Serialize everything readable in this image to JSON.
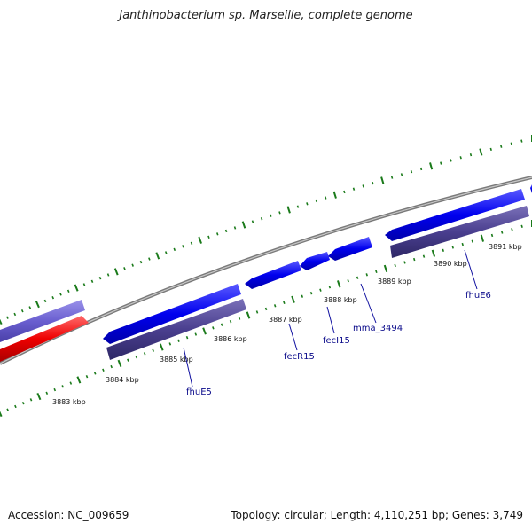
{
  "title": "Janthinobacterium sp. Marseille, complete genome",
  "footer": {
    "accession": "Accession: NC_009659",
    "summary": "Topology: circular; Length: 4,110,251 bp; Genes: 3,749"
  },
  "colors": {
    "backbone": "#888888",
    "tick": "#1a7a1a",
    "forward_gene": "#0000ee",
    "reverse_gene": "#4a3f8f",
    "rna_gene": "#ee0000",
    "light_gene": "#6a5fd0",
    "label": "#0a0a8a"
  },
  "scale_labels": [
    {
      "text": "3883 kbp"
    },
    {
      "text": "3884 kbp"
    },
    {
      "text": "3885 kbp"
    },
    {
      "text": "3886 kbp"
    },
    {
      "text": "3887 kbp"
    },
    {
      "text": "3888 kbp"
    },
    {
      "text": "3889 kbp"
    },
    {
      "text": "3890 kbp"
    },
    {
      "text": "3891 kbp"
    }
  ],
  "gene_labels": [
    {
      "text": "fhuE5"
    },
    {
      "text": "fecR15"
    },
    {
      "text": "fecI15"
    },
    {
      "text": "mma_3494"
    },
    {
      "text": "fhuE6"
    }
  ]
}
